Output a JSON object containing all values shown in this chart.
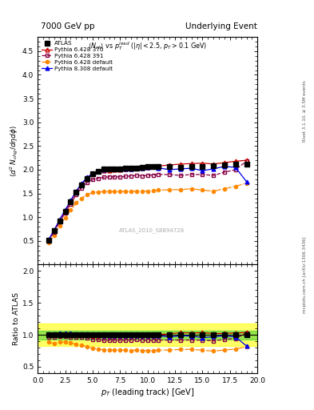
{
  "title_left": "7000 GeV pp",
  "title_right": "Underlying Event",
  "right_label": "Rivet 3.1.10, ≥ 3.5M events",
  "arxiv_label": "mcplots.cern.ch [arXiv:1306.3436]",
  "watermark": "ATLAS_2010_S8894728",
  "ylabel_main": "⟨d² Nₜₕᵍ/dηdφ⟩",
  "ylabel_ratio": "Ratio to ATLAS",
  "xlabel": "p_{T} (leading track) [GeV]",
  "xlim": [
    0,
    20
  ],
  "ylim_main": [
    0,
    4.8
  ],
  "ylim_ratio": [
    0.4,
    2.1
  ],
  "yticks_main": [
    0.5,
    1.0,
    1.5,
    2.0,
    2.5,
    3.0,
    3.5,
    4.0,
    4.5
  ],
  "yticks_ratio": [
    0.5,
    1.0,
    1.5,
    2.0
  ],
  "ratio_band_green": {
    "ymin": 0.93,
    "ymax": 1.07,
    "color": "#33cc33",
    "alpha": 0.5
  },
  "ratio_band_yellow": {
    "ymin": 0.82,
    "ymax": 1.18,
    "color": "#ffff00",
    "alpha": 0.6
  },
  "atlas_pt": [
    1.0,
    1.5,
    2.0,
    2.5,
    3.0,
    3.5,
    4.0,
    4.5,
    5.0,
    5.5,
    6.0,
    6.5,
    7.0,
    7.5,
    8.0,
    8.5,
    9.0,
    9.5,
    10.0,
    10.5,
    11.0,
    12.0,
    13.0,
    14.0,
    15.0,
    16.0,
    17.0,
    18.0,
    19.0
  ],
  "atlas_val": [
    0.52,
    0.72,
    0.92,
    1.12,
    1.32,
    1.52,
    1.68,
    1.82,
    1.92,
    1.97,
    2.01,
    2.02,
    2.02,
    2.02,
    2.03,
    2.04,
    2.04,
    2.05,
    2.06,
    2.07,
    2.07,
    2.07,
    2.05,
    2.07,
    2.07,
    2.08,
    2.1,
    2.12,
    2.12
  ],
  "p6_370_pt": [
    1.0,
    1.5,
    2.0,
    2.5,
    3.0,
    3.5,
    4.0,
    4.5,
    5.0,
    5.5,
    6.0,
    6.5,
    7.0,
    7.5,
    8.0,
    8.5,
    9.0,
    9.5,
    10.0,
    10.5,
    11.0,
    12.0,
    13.0,
    14.0,
    15.0,
    16.0,
    17.0,
    18.0,
    19.0
  ],
  "p6_370_val": [
    0.52,
    0.72,
    0.93,
    1.13,
    1.33,
    1.53,
    1.69,
    1.83,
    1.91,
    1.96,
    1.98,
    1.99,
    2.0,
    2.0,
    2.01,
    2.02,
    2.03,
    2.04,
    2.05,
    2.06,
    2.08,
    2.1,
    2.12,
    2.13,
    2.14,
    2.12,
    2.15,
    2.18,
    2.2
  ],
  "p6_391_pt": [
    1.0,
    1.5,
    2.0,
    2.5,
    3.0,
    3.5,
    4.0,
    4.5,
    5.0,
    5.5,
    6.0,
    6.5,
    7.0,
    7.5,
    8.0,
    8.5,
    9.0,
    9.5,
    10.0,
    10.5,
    11.0,
    12.0,
    13.0,
    14.0,
    15.0,
    16.0,
    17.0,
    18.0,
    19.0
  ],
  "p6_391_val": [
    0.5,
    0.69,
    0.9,
    1.09,
    1.28,
    1.47,
    1.62,
    1.73,
    1.79,
    1.82,
    1.84,
    1.85,
    1.85,
    1.85,
    1.86,
    1.87,
    1.88,
    1.87,
    1.88,
    1.89,
    1.9,
    1.9,
    1.88,
    1.9,
    1.9,
    1.88,
    1.95,
    2.0,
    2.18
  ],
  "p6_def_pt": [
    1.0,
    1.5,
    2.0,
    2.5,
    3.0,
    3.5,
    4.0,
    4.5,
    5.0,
    5.5,
    6.0,
    6.5,
    7.0,
    7.5,
    8.0,
    8.5,
    9.0,
    9.5,
    10.0,
    10.5,
    11.0,
    12.0,
    13.0,
    14.0,
    15.0,
    16.0,
    17.0,
    18.0,
    19.0
  ],
  "p6_def_val": [
    0.46,
    0.62,
    0.82,
    0.99,
    1.15,
    1.3,
    1.4,
    1.48,
    1.52,
    1.53,
    1.54,
    1.54,
    1.54,
    1.54,
    1.54,
    1.54,
    1.55,
    1.55,
    1.55,
    1.56,
    1.57,
    1.58,
    1.58,
    1.6,
    1.57,
    1.55,
    1.6,
    1.65,
    1.72
  ],
  "p8_def_pt": [
    1.0,
    1.5,
    2.0,
    2.5,
    3.0,
    3.5,
    4.0,
    4.5,
    5.0,
    5.5,
    6.0,
    6.5,
    7.0,
    7.5,
    8.0,
    8.5,
    9.0,
    9.5,
    10.0,
    10.5,
    11.0,
    12.0,
    13.0,
    14.0,
    15.0,
    16.0,
    17.0,
    18.0,
    19.0
  ],
  "p8_def_val": [
    0.53,
    0.73,
    0.95,
    1.15,
    1.35,
    1.55,
    1.71,
    1.84,
    1.92,
    1.97,
    2.0,
    2.01,
    2.01,
    2.01,
    2.02,
    2.02,
    2.03,
    2.04,
    2.05,
    2.06,
    2.04,
    2.0,
    2.02,
    2.03,
    1.98,
    2.02,
    2.07,
    2.05,
    1.75
  ],
  "color_atlas": "#000000",
  "color_p6_370": "#cc0000",
  "color_p6_391": "#880044",
  "color_p6_def": "#ff8800",
  "color_p8_def": "#0000ee"
}
